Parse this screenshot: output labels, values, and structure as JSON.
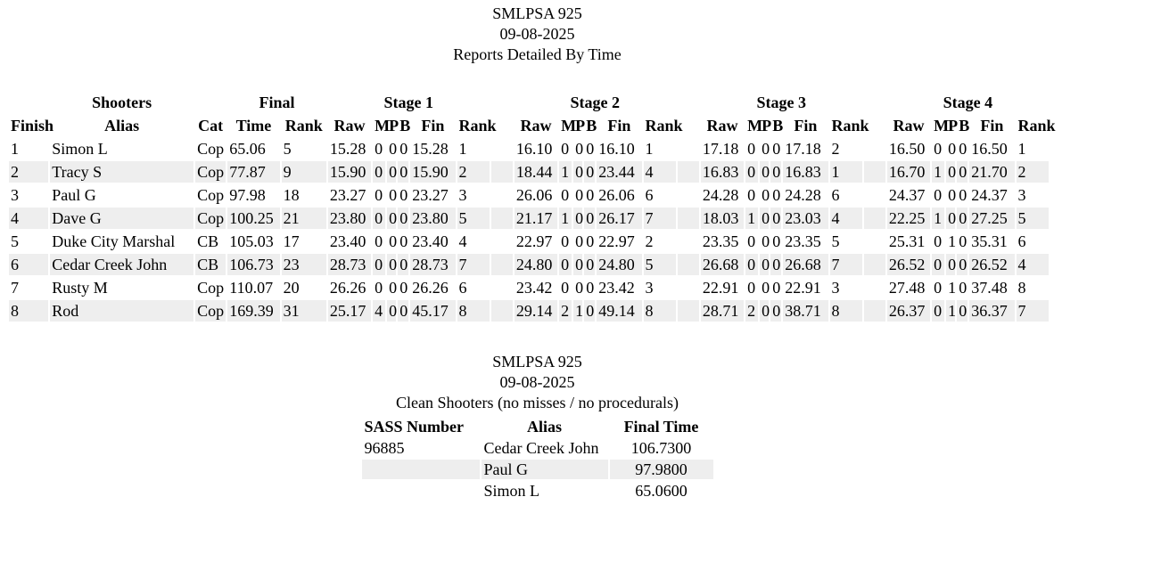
{
  "report": {
    "title": "SMLPSA 925",
    "date": "09-08-2025",
    "subtitle": "Reports Detailed By Time"
  },
  "main_table": {
    "group_headers": {
      "shooters": "Shooters",
      "final": "Final",
      "stages": [
        "Stage 1",
        "Stage 2",
        "Stage 3",
        "Stage 4"
      ]
    },
    "columns": {
      "finish": "Finish",
      "alias": "Alias",
      "cat": "Cat",
      "time": "Time",
      "rank": "Rank",
      "stage_cols": [
        "Raw",
        "M",
        "P",
        "B",
        "Fin",
        "Rank"
      ]
    },
    "rows": [
      {
        "finish": "1",
        "alias": "Simon L",
        "cat": "Cop",
        "time": "65.06",
        "rank": "5",
        "stages": [
          {
            "raw": "15.28",
            "m": "0",
            "p": "0",
            "b": "0",
            "fin": "15.28",
            "rank": "1"
          },
          {
            "raw": "16.10",
            "m": "0",
            "p": "0",
            "b": "0",
            "fin": "16.10",
            "rank": "1"
          },
          {
            "raw": "17.18",
            "m": "0",
            "p": "0",
            "b": "0",
            "fin": "17.18",
            "rank": "2"
          },
          {
            "raw": "16.50",
            "m": "0",
            "p": "0",
            "b": "0",
            "fin": "16.50",
            "rank": "1"
          }
        ]
      },
      {
        "finish": "2",
        "alias": "Tracy S",
        "cat": "Cop",
        "time": "77.87",
        "rank": "9",
        "stages": [
          {
            "raw": "15.90",
            "m": "0",
            "p": "0",
            "b": "0",
            "fin": "15.90",
            "rank": "2"
          },
          {
            "raw": "18.44",
            "m": "1",
            "p": "0",
            "b": "0",
            "fin": "23.44",
            "rank": "4"
          },
          {
            "raw": "16.83",
            "m": "0",
            "p": "0",
            "b": "0",
            "fin": "16.83",
            "rank": "1"
          },
          {
            "raw": "16.70",
            "m": "1",
            "p": "0",
            "b": "0",
            "fin": "21.70",
            "rank": "2"
          }
        ]
      },
      {
        "finish": "3",
        "alias": "Paul G",
        "cat": "Cop",
        "time": "97.98",
        "rank": "18",
        "stages": [
          {
            "raw": "23.27",
            "m": "0",
            "p": "0",
            "b": "0",
            "fin": "23.27",
            "rank": "3"
          },
          {
            "raw": "26.06",
            "m": "0",
            "p": "0",
            "b": "0",
            "fin": "26.06",
            "rank": "6"
          },
          {
            "raw": "24.28",
            "m": "0",
            "p": "0",
            "b": "0",
            "fin": "24.28",
            "rank": "6"
          },
          {
            "raw": "24.37",
            "m": "0",
            "p": "0",
            "b": "0",
            "fin": "24.37",
            "rank": "3"
          }
        ]
      },
      {
        "finish": "4",
        "alias": "Dave G",
        "cat": "Cop",
        "time": "100.25",
        "rank": "21",
        "stages": [
          {
            "raw": "23.80",
            "m": "0",
            "p": "0",
            "b": "0",
            "fin": "23.80",
            "rank": "5"
          },
          {
            "raw": "21.17",
            "m": "1",
            "p": "0",
            "b": "0",
            "fin": "26.17",
            "rank": "7"
          },
          {
            "raw": "18.03",
            "m": "1",
            "p": "0",
            "b": "0",
            "fin": "23.03",
            "rank": "4"
          },
          {
            "raw": "22.25",
            "m": "1",
            "p": "0",
            "b": "0",
            "fin": "27.25",
            "rank": "5"
          }
        ]
      },
      {
        "finish": "5",
        "alias": "Duke City Marshal",
        "cat": "CB",
        "time": "105.03",
        "rank": "17",
        "stages": [
          {
            "raw": "23.40",
            "m": "0",
            "p": "0",
            "b": "0",
            "fin": "23.40",
            "rank": "4"
          },
          {
            "raw": "22.97",
            "m": "0",
            "p": "0",
            "b": "0",
            "fin": "22.97",
            "rank": "2"
          },
          {
            "raw": "23.35",
            "m": "0",
            "p": "0",
            "b": "0",
            "fin": "23.35",
            "rank": "5"
          },
          {
            "raw": "25.31",
            "m": "0",
            "p": "1",
            "b": "0",
            "fin": "35.31",
            "rank": "6"
          }
        ]
      },
      {
        "finish": "6",
        "alias": "Cedar Creek John",
        "cat": "CB",
        "time": "106.73",
        "rank": "23",
        "stages": [
          {
            "raw": "28.73",
            "m": "0",
            "p": "0",
            "b": "0",
            "fin": "28.73",
            "rank": "7"
          },
          {
            "raw": "24.80",
            "m": "0",
            "p": "0",
            "b": "0",
            "fin": "24.80",
            "rank": "5"
          },
          {
            "raw": "26.68",
            "m": "0",
            "p": "0",
            "b": "0",
            "fin": "26.68",
            "rank": "7"
          },
          {
            "raw": "26.52",
            "m": "0",
            "p": "0",
            "b": "0",
            "fin": "26.52",
            "rank": "4"
          }
        ]
      },
      {
        "finish": "7",
        "alias": "Rusty M",
        "cat": "Cop",
        "time": "110.07",
        "rank": "20",
        "stages": [
          {
            "raw": "26.26",
            "m": "0",
            "p": "0",
            "b": "0",
            "fin": "26.26",
            "rank": "6"
          },
          {
            "raw": "23.42",
            "m": "0",
            "p": "0",
            "b": "0",
            "fin": "23.42",
            "rank": "3"
          },
          {
            "raw": "22.91",
            "m": "0",
            "p": "0",
            "b": "0",
            "fin": "22.91",
            "rank": "3"
          },
          {
            "raw": "27.48",
            "m": "0",
            "p": "1",
            "b": "0",
            "fin": "37.48",
            "rank": "8"
          }
        ]
      },
      {
        "finish": "8",
        "alias": "Rod",
        "cat": "Cop",
        "time": "169.39",
        "rank": "31",
        "stages": [
          {
            "raw": "25.17",
            "m": "4",
            "p": "0",
            "b": "0",
            "fin": "45.17",
            "rank": "8"
          },
          {
            "raw": "29.14",
            "m": "2",
            "p": "1",
            "b": "0",
            "fin": "49.14",
            "rank": "8"
          },
          {
            "raw": "28.71",
            "m": "2",
            "p": "0",
            "b": "0",
            "fin": "38.71",
            "rank": "8"
          },
          {
            "raw": "26.37",
            "m": "0",
            "p": "1",
            "b": "0",
            "fin": "36.37",
            "rank": "7"
          }
        ]
      }
    ]
  },
  "clean_shooters": {
    "title": "SMLPSA 925",
    "date": "09-08-2025",
    "subtitle": "Clean Shooters (no misses / no procedurals)",
    "columns": {
      "sass_number": "SASS Number",
      "alias": "Alias",
      "final_time": "Final Time"
    },
    "rows": [
      {
        "sass_number": "96885",
        "alias": "Cedar Creek John",
        "final_time": "106.7300"
      },
      {
        "sass_number": "",
        "alias": "Paul G",
        "final_time": "97.9800"
      },
      {
        "sass_number": "",
        "alias": "Simon L",
        "final_time": "65.0600"
      }
    ]
  },
  "colors": {
    "stripe": "#eeeeee",
    "text": "#000000",
    "background": "#ffffff"
  }
}
